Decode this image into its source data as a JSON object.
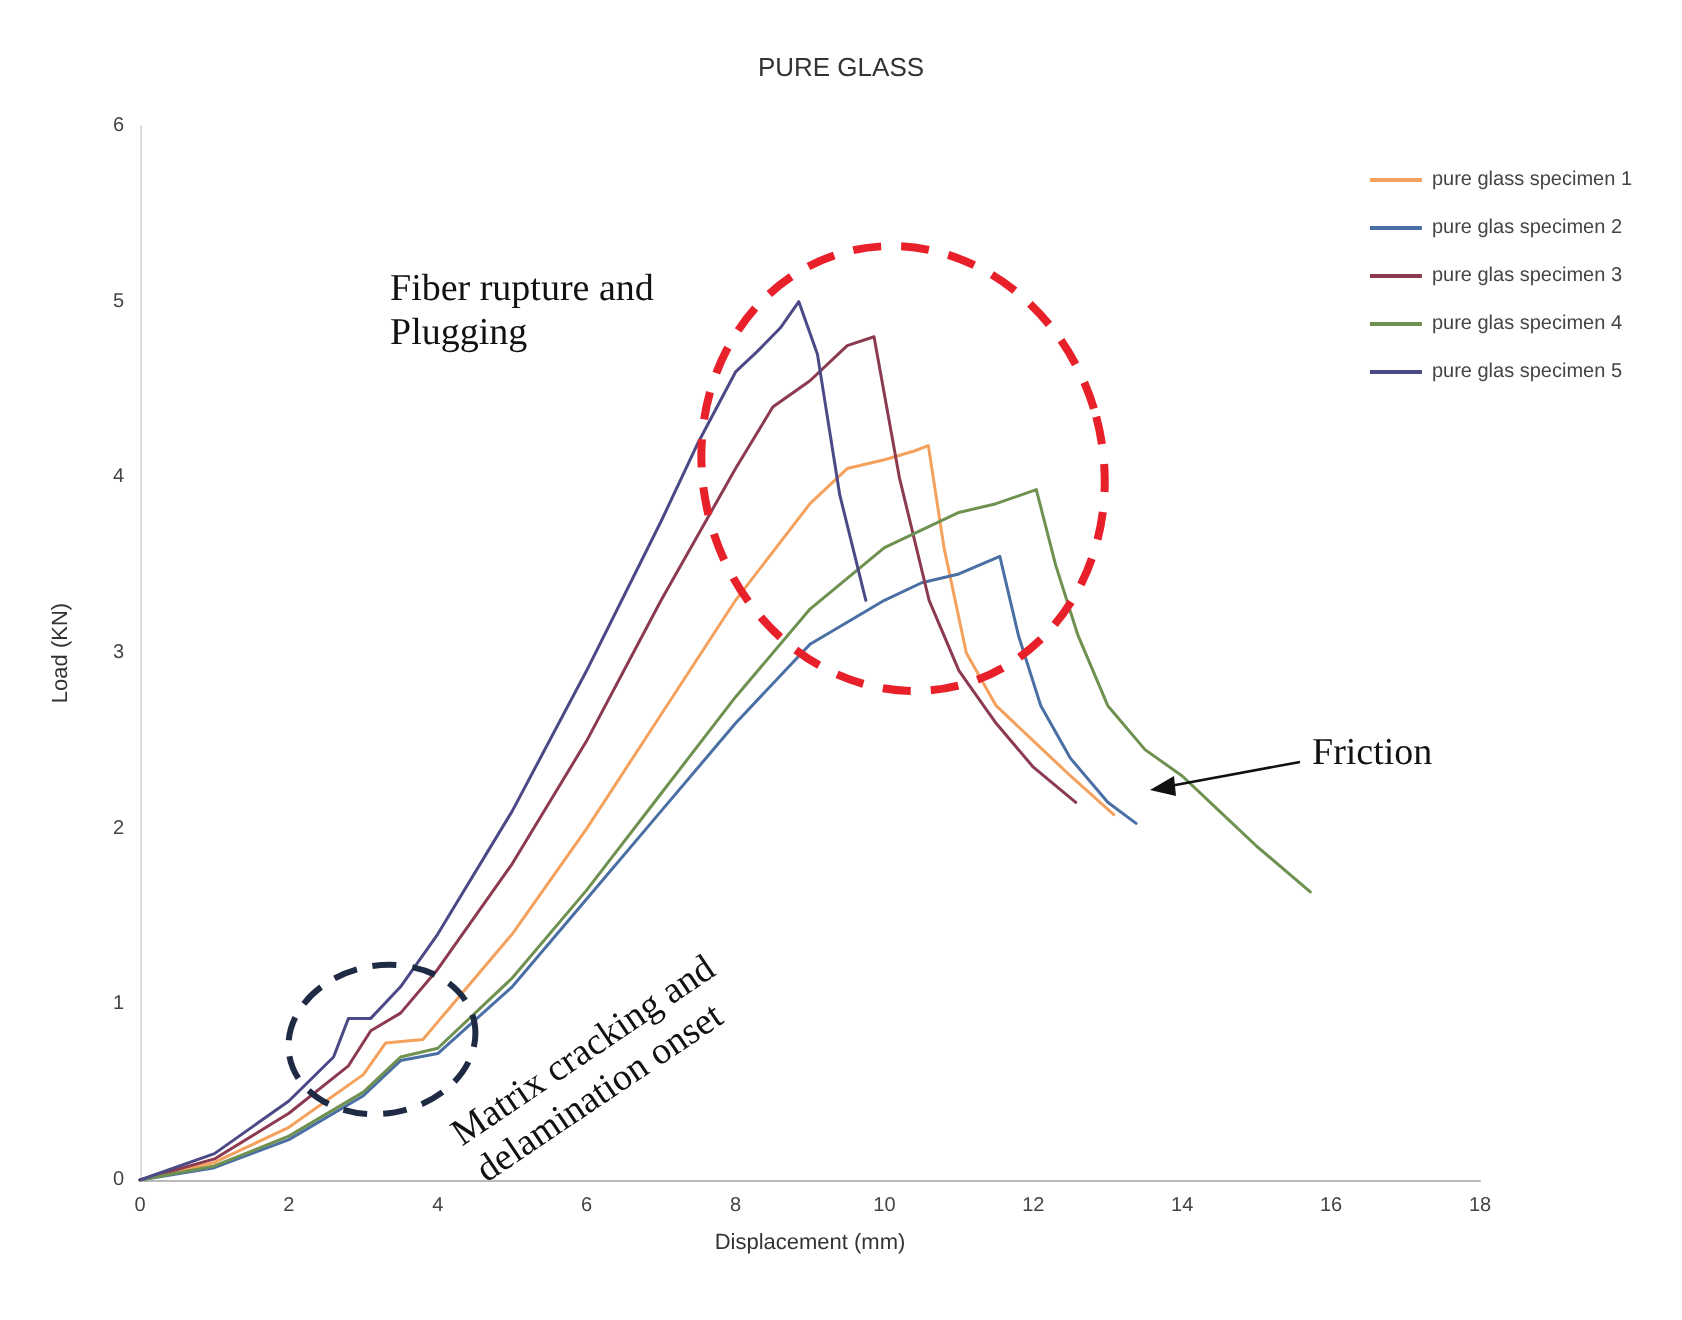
{
  "chart_data": {
    "type": "line",
    "title": "PURE GLASS",
    "xlabel": "Displacement (mm)",
    "ylabel": "Load (KN)",
    "xlim": [
      0,
      18
    ],
    "xticks": [
      0,
      2,
      4,
      6,
      8,
      10,
      12,
      14,
      16,
      18
    ],
    "ylim": [
      0,
      6
    ],
    "yticks": [
      0,
      1,
      2,
      3,
      4,
      5,
      6
    ],
    "grid": false,
    "legend": "top right",
    "marker": "none",
    "line_style": "solid",
    "annotations": [
      "Fiber rupture and\nPlugging",
      "Matrix cracking and\ndelamination onset",
      "Friction"
    ],
    "series": [
      {
        "name": "pure glass specimen 1",
        "color": "#f4a15d",
        "x": [
          0,
          1,
          2,
          3,
          3.3,
          3.8,
          4,
          5,
          6,
          7,
          8,
          9,
          9.5,
          10,
          10.4,
          10.59,
          10.8,
          11.1,
          11.5,
          12,
          12.5,
          13.08
        ],
        "values": [
          0,
          0.1,
          0.3,
          0.6,
          0.78,
          0.8,
          0.9,
          1.4,
          2.0,
          2.65,
          3.3,
          3.85,
          4.05,
          4.1,
          4.15,
          4.18,
          3.6,
          3.0,
          2.7,
          2.5,
          2.3,
          2.08
        ]
      },
      {
        "name": "pure glas specimen 2",
        "color": "#4a6fa5",
        "x": [
          0,
          1,
          2,
          3,
          3.5,
          4,
          5,
          6,
          7,
          8,
          9,
          10,
          10.5,
          11,
          11.55,
          11.8,
          12.1,
          12.5,
          13,
          13.38
        ],
        "values": [
          0,
          0.07,
          0.23,
          0.48,
          0.68,
          0.72,
          1.1,
          1.6,
          2.1,
          2.6,
          3.05,
          3.3,
          3.4,
          3.45,
          3.55,
          3.1,
          2.7,
          2.4,
          2.15,
          2.03
        ]
      },
      {
        "name": "pure glas specimen 3",
        "color": "#8b3a4f",
        "x": [
          0,
          1,
          2,
          2.8,
          3.1,
          3.5,
          4,
          5,
          6,
          7,
          8,
          8.5,
          9,
          9.5,
          9.86,
          10.2,
          10.6,
          11,
          11.5,
          12,
          12.57
        ],
        "values": [
          0,
          0.12,
          0.38,
          0.65,
          0.85,
          0.95,
          1.2,
          1.8,
          2.5,
          3.3,
          4.05,
          4.4,
          4.55,
          4.75,
          4.8,
          4.0,
          3.3,
          2.9,
          2.6,
          2.35,
          2.15
        ]
      },
      {
        "name": "pure glas specimen 4",
        "color": "#6e9150",
        "x": [
          0,
          1,
          2,
          3,
          3.5,
          4,
          5,
          6,
          7,
          8,
          9,
          10,
          11,
          11.5,
          12.04,
          12.3,
          12.6,
          13,
          13.5,
          14,
          14.5,
          15,
          15.72
        ],
        "values": [
          0,
          0.08,
          0.25,
          0.5,
          0.7,
          0.75,
          1.15,
          1.65,
          2.2,
          2.75,
          3.25,
          3.6,
          3.8,
          3.85,
          3.93,
          3.5,
          3.1,
          2.7,
          2.45,
          2.3,
          2.1,
          1.9,
          1.64
        ]
      },
      {
        "name": "pure glas specimen 5",
        "color": "#4b4a86",
        "x": [
          0,
          1,
          2,
          2.6,
          2.8,
          3.1,
          3.5,
          4,
          5,
          6,
          7,
          7.5,
          8,
          8.3,
          8.6,
          8.85,
          9.1,
          9.4,
          9.75
        ],
        "values": [
          0,
          0.15,
          0.45,
          0.7,
          0.92,
          0.92,
          1.1,
          1.4,
          2.1,
          2.9,
          3.75,
          4.2,
          4.6,
          4.72,
          4.85,
          5.0,
          4.7,
          3.9,
          3.3
        ]
      }
    ]
  }
}
